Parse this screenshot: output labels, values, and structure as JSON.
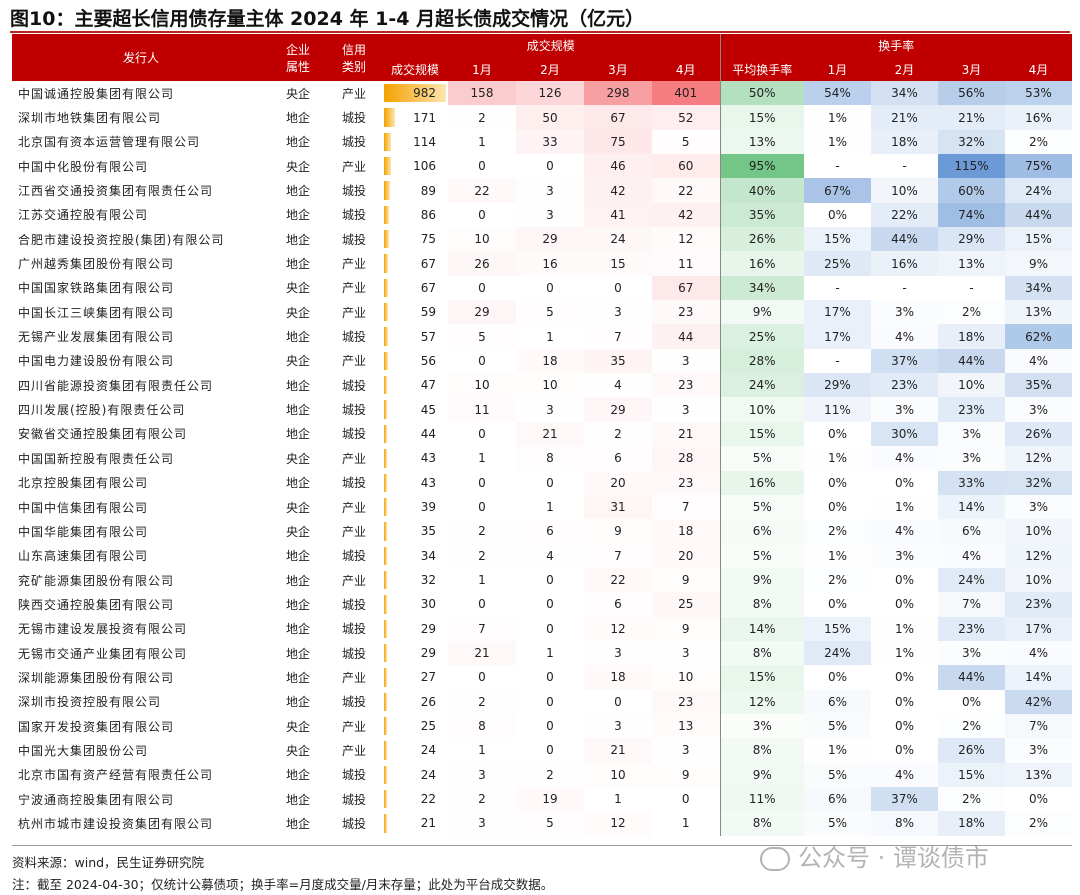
{
  "title": "图10：主要超长信用债存量主体 2024 年 1-4 月超长债成交情况（亿元）",
  "headers": {
    "issuer": "发行人",
    "nature": "企业\n属性",
    "credit": "信用\n类别",
    "volume_group": "成交规模",
    "turnover_group": "换手率",
    "volume_total": "成交规模",
    "avg_turnover": "平均换手率",
    "months": [
      "1月",
      "2月",
      "3月",
      "4月"
    ]
  },
  "colors": {
    "header_bg": "#c00000",
    "volume_heat": "#f4676c",
    "avg_heat": "#63be7b",
    "turnover_heat": "#5b8fd1",
    "scale_bar": "#f4a100"
  },
  "rows": [
    {
      "issuer": "中国诚通控股集团有限公司",
      "nature": "央企",
      "credit": "产业",
      "scale": 982,
      "m": [
        158,
        126,
        298,
        401
      ],
      "avg": "50%",
      "t": [
        "54%",
        "34%",
        "56%",
        "53%"
      ]
    },
    {
      "issuer": "深圳市地铁集团有限公司",
      "nature": "地企",
      "credit": "城投",
      "scale": 171,
      "m": [
        2,
        50,
        67,
        52
      ],
      "avg": "15%",
      "t": [
        "1%",
        "21%",
        "21%",
        "16%"
      ]
    },
    {
      "issuer": "北京国有资本运营管理有限公司",
      "nature": "地企",
      "credit": "城投",
      "scale": 114,
      "m": [
        1,
        33,
        75,
        5
      ],
      "avg": "13%",
      "t": [
        "1%",
        "18%",
        "32%",
        "2%"
      ]
    },
    {
      "issuer": "中国中化股份有限公司",
      "nature": "央企",
      "credit": "产业",
      "scale": 106,
      "m": [
        0,
        0,
        46,
        60
      ],
      "avg": "95%",
      "t": [
        "-",
        "-",
        "115%",
        "75%"
      ]
    },
    {
      "issuer": "江西省交通投资集团有限责任公司",
      "nature": "地企",
      "credit": "城投",
      "scale": 89,
      "m": [
        22,
        3,
        42,
        22
      ],
      "avg": "40%",
      "t": [
        "67%",
        "10%",
        "60%",
        "24%"
      ]
    },
    {
      "issuer": "江苏交通控股有限公司",
      "nature": "地企",
      "credit": "城投",
      "scale": 86,
      "m": [
        0,
        3,
        41,
        42
      ],
      "avg": "35%",
      "t": [
        "0%",
        "22%",
        "74%",
        "44%"
      ]
    },
    {
      "issuer": "合肥市建设投资控股(集团)有限公司",
      "nature": "地企",
      "credit": "城投",
      "scale": 75,
      "m": [
        10,
        29,
        24,
        12
      ],
      "avg": "26%",
      "t": [
        "15%",
        "44%",
        "29%",
        "15%"
      ]
    },
    {
      "issuer": "广州越秀集团股份有限公司",
      "nature": "地企",
      "credit": "产业",
      "scale": 67,
      "m": [
        26,
        16,
        15,
        11
      ],
      "avg": "16%",
      "t": [
        "25%",
        "16%",
        "13%",
        "9%"
      ]
    },
    {
      "issuer": "中国国家铁路集团有限公司",
      "nature": "央企",
      "credit": "产业",
      "scale": 67,
      "m": [
        0,
        0,
        0,
        67
      ],
      "avg": "34%",
      "t": [
        "-",
        "-",
        "-",
        "34%"
      ]
    },
    {
      "issuer": "中国长江三峡集团有限公司",
      "nature": "央企",
      "credit": "产业",
      "scale": 59,
      "m": [
        29,
        5,
        3,
        23
      ],
      "avg": "9%",
      "t": [
        "17%",
        "3%",
        "2%",
        "13%"
      ]
    },
    {
      "issuer": "无锡产业发展集团有限公司",
      "nature": "地企",
      "credit": "城投",
      "scale": 57,
      "m": [
        5,
        1,
        7,
        44
      ],
      "avg": "25%",
      "t": [
        "17%",
        "4%",
        "18%",
        "62%"
      ]
    },
    {
      "issuer": "中国电力建设股份有限公司",
      "nature": "央企",
      "credit": "产业",
      "scale": 56,
      "m": [
        0,
        18,
        35,
        3
      ],
      "avg": "28%",
      "t": [
        "-",
        "37%",
        "44%",
        "4%"
      ]
    },
    {
      "issuer": "四川省能源投资集团有限责任公司",
      "nature": "地企",
      "credit": "城投",
      "scale": 47,
      "m": [
        10,
        10,
        4,
        23
      ],
      "avg": "24%",
      "t": [
        "29%",
        "23%",
        "10%",
        "35%"
      ]
    },
    {
      "issuer": "四川发展(控股)有限责任公司",
      "nature": "地企",
      "credit": "城投",
      "scale": 45,
      "m": [
        11,
        3,
        29,
        3
      ],
      "avg": "10%",
      "t": [
        "11%",
        "3%",
        "23%",
        "3%"
      ]
    },
    {
      "issuer": "安徽省交通控股集团有限公司",
      "nature": "地企",
      "credit": "城投",
      "scale": 44,
      "m": [
        0,
        21,
        2,
        21
      ],
      "avg": "15%",
      "t": [
        "0%",
        "30%",
        "3%",
        "26%"
      ]
    },
    {
      "issuer": "中国国新控股有限责任公司",
      "nature": "央企",
      "credit": "产业",
      "scale": 43,
      "m": [
        1,
        8,
        6,
        28
      ],
      "avg": "5%",
      "t": [
        "1%",
        "4%",
        "3%",
        "12%"
      ]
    },
    {
      "issuer": "北京控股集团有限公司",
      "nature": "地企",
      "credit": "城投",
      "scale": 43,
      "m": [
        0,
        0,
        20,
        23
      ],
      "avg": "16%",
      "t": [
        "0%",
        "0%",
        "33%",
        "32%"
      ]
    },
    {
      "issuer": "中国中信集团有限公司",
      "nature": "央企",
      "credit": "产业",
      "scale": 39,
      "m": [
        0,
        1,
        31,
        7
      ],
      "avg": "5%",
      "t": [
        "0%",
        "1%",
        "14%",
        "3%"
      ]
    },
    {
      "issuer": "中国华能集团有限公司",
      "nature": "央企",
      "credit": "产业",
      "scale": 35,
      "m": [
        2,
        6,
        9,
        18
      ],
      "avg": "6%",
      "t": [
        "2%",
        "4%",
        "6%",
        "10%"
      ]
    },
    {
      "issuer": "山东高速集团有限公司",
      "nature": "地企",
      "credit": "城投",
      "scale": 34,
      "m": [
        2,
        4,
        7,
        20
      ],
      "avg": "5%",
      "t": [
        "1%",
        "3%",
        "4%",
        "12%"
      ]
    },
    {
      "issuer": "兖矿能源集团股份有限公司",
      "nature": "地企",
      "credit": "产业",
      "scale": 32,
      "m": [
        1,
        0,
        22,
        9
      ],
      "avg": "9%",
      "t": [
        "2%",
        "0%",
        "24%",
        "10%"
      ]
    },
    {
      "issuer": "陕西交通控股集团有限公司",
      "nature": "地企",
      "credit": "城投",
      "scale": 30,
      "m": [
        0,
        0,
        6,
        25
      ],
      "avg": "8%",
      "t": [
        "0%",
        "0%",
        "7%",
        "23%"
      ]
    },
    {
      "issuer": "无锡市建设发展投资有限公司",
      "nature": "地企",
      "credit": "城投",
      "scale": 29,
      "m": [
        7,
        0,
        12,
        9
      ],
      "avg": "14%",
      "t": [
        "15%",
        "1%",
        "23%",
        "17%"
      ]
    },
    {
      "issuer": "无锡市交通产业集团有限公司",
      "nature": "地企",
      "credit": "城投",
      "scale": 29,
      "m": [
        21,
        1,
        3,
        3
      ],
      "avg": "8%",
      "t": [
        "24%",
        "1%",
        "3%",
        "4%"
      ]
    },
    {
      "issuer": "深圳能源集团股份有限公司",
      "nature": "地企",
      "credit": "产业",
      "scale": 27,
      "m": [
        0,
        0,
        18,
        10
      ],
      "avg": "15%",
      "t": [
        "0%",
        "0%",
        "44%",
        "14%"
      ]
    },
    {
      "issuer": "深圳市投资控股有限公司",
      "nature": "地企",
      "credit": "城投",
      "scale": 26,
      "m": [
        2,
        0,
        0,
        23
      ],
      "avg": "12%",
      "t": [
        "6%",
        "0%",
        "0%",
        "42%"
      ]
    },
    {
      "issuer": "国家开发投资集团有限公司",
      "nature": "央企",
      "credit": "产业",
      "scale": 25,
      "m": [
        8,
        0,
        3,
        13
      ],
      "avg": "3%",
      "t": [
        "5%",
        "0%",
        "2%",
        "7%"
      ]
    },
    {
      "issuer": "中国光大集团股份公司",
      "nature": "央企",
      "credit": "产业",
      "scale": 24,
      "m": [
        1,
        0,
        21,
        3
      ],
      "avg": "8%",
      "t": [
        "1%",
        "0%",
        "26%",
        "3%"
      ]
    },
    {
      "issuer": "北京市国有资产经营有限责任公司",
      "nature": "地企",
      "credit": "城投",
      "scale": 24,
      "m": [
        3,
        2,
        10,
        9
      ],
      "avg": "9%",
      "t": [
        "5%",
        "4%",
        "15%",
        "13%"
      ]
    },
    {
      "issuer": "宁波通商控股集团有限公司",
      "nature": "地企",
      "credit": "城投",
      "scale": 22,
      "m": [
        2,
        19,
        1,
        0
      ],
      "avg": "11%",
      "t": [
        "6%",
        "37%",
        "2%",
        "0%"
      ]
    },
    {
      "issuer": "杭州市城市建设投资集团有限公司",
      "nature": "地企",
      "credit": "城投",
      "scale": 21,
      "m": [
        3,
        5,
        12,
        1
      ],
      "avg": "8%",
      "t": [
        "5%",
        "8%",
        "18%",
        "2%"
      ]
    }
  ],
  "source": "资料来源：wind，民生证券研究院",
  "note": "注：截至 2024-04-30；仅统计公募债项；换手率=月度成交量/月末存量；此处为平台成交数据。",
  "watermark": "公众号 · 谭谈债市"
}
